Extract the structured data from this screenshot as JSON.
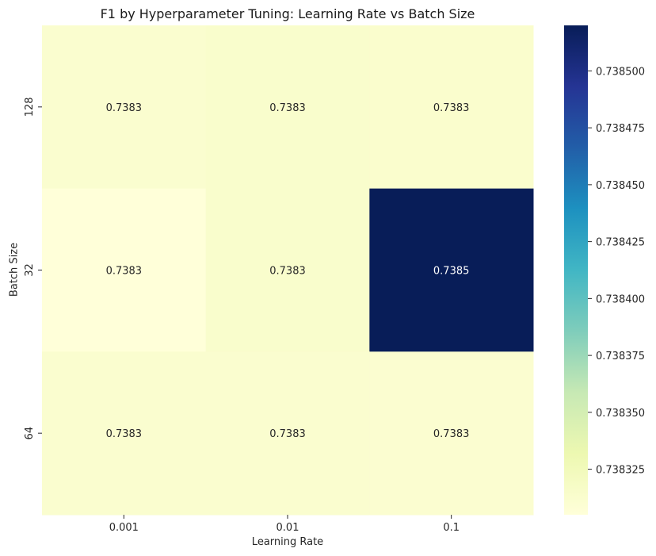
{
  "chart_data": {
    "type": "heatmap",
    "title": "F1 by Hyperparameter Tuning: Learning Rate vs Batch Size",
    "xlabel": "Learning Rate",
    "ylabel": "Batch Size",
    "x_categories": [
      "0.001",
      "0.01",
      "0.1"
    ],
    "y_categories": [
      "128",
      "32",
      "64"
    ],
    "values": [
      [
        0.738312,
        0.738314,
        0.738313
      ],
      [
        0.738305,
        0.738314,
        0.73852
      ],
      [
        0.738312,
        0.738312,
        0.738311
      ]
    ],
    "labels": [
      [
        "0.7383",
        "0.7383",
        "0.7383"
      ],
      [
        "0.7383",
        "0.7383",
        "0.7385"
      ],
      [
        "0.7383",
        "0.7383",
        "0.7383"
      ]
    ],
    "colormap": "YlGnBu",
    "vmin": 0.738305,
    "vmax": 0.73852,
    "colorbar_ticks": [
      "0.738325",
      "0.738350",
      "0.738375",
      "0.738400",
      "0.738425",
      "0.738450",
      "0.738475",
      "0.738500"
    ],
    "colorbar_tick_values": [
      0.738325,
      0.73835,
      0.738375,
      0.7384,
      0.738425,
      0.73845,
      0.738475,
      0.7385
    ]
  }
}
